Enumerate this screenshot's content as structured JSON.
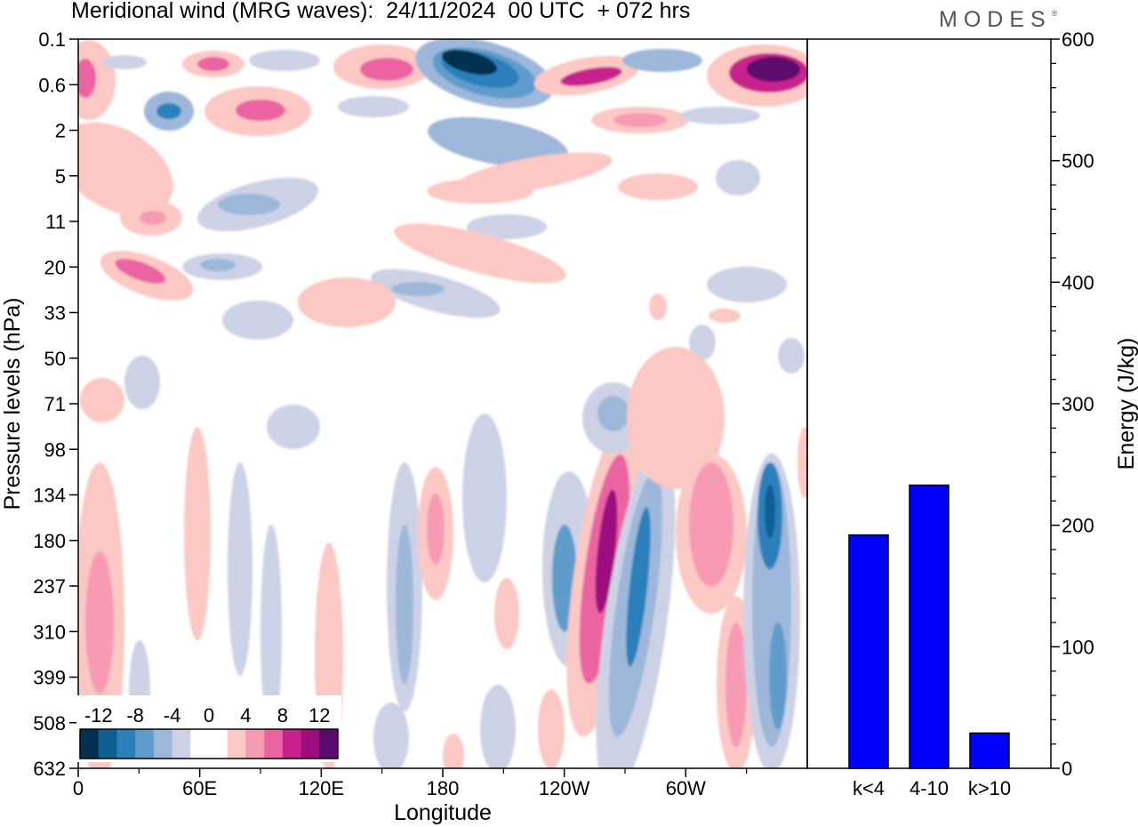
{
  "title": "Meridional wind (MRG waves):  24/11/2024  00 UTC  + 072 hrs",
  "brand": "MODES",
  "brand_mark": "®",
  "chart_data": [
    {
      "type": "heatmap",
      "xlabel": "Longitude",
      "ylabel": "Pressure levels (hPa)",
      "x_ticks": [
        "0",
        "60E",
        "120E",
        "180",
        "120W",
        "60W"
      ],
      "y_ticks": [
        "0.1",
        "0.6",
        "2",
        "5",
        "11",
        "20",
        "33",
        "50",
        "71",
        "98",
        "134",
        "180",
        "237",
        "310",
        "399",
        "508",
        "632"
      ],
      "colorbar": {
        "labels": [
          "-12",
          "-8",
          "-4",
          "0",
          "4",
          "8",
          "12"
        ],
        "colors": [
          "#05304f",
          "#0e5f94",
          "#2a80bb",
          "#5e9ccc",
          "#9db7da",
          "#cdd1e6",
          "#ffffff",
          "#ffffff",
          "#fbc8c4",
          "#f79bb4",
          "#ec63a2",
          "#c8218c",
          "#9c0e7d",
          "#5b0a6e"
        ]
      }
    },
    {
      "type": "bar",
      "categories": [
        "k<4",
        "4-10",
        "k>10"
      ],
      "values": [
        192,
        233,
        29
      ],
      "ylabel": "Energy (J/kg)",
      "ylim": [
        0,
        600
      ],
      "y_ticks": [
        "0",
        "100",
        "200",
        "300",
        "400",
        "500",
        "600"
      ],
      "bar_color": "#0000ff"
    }
  ]
}
